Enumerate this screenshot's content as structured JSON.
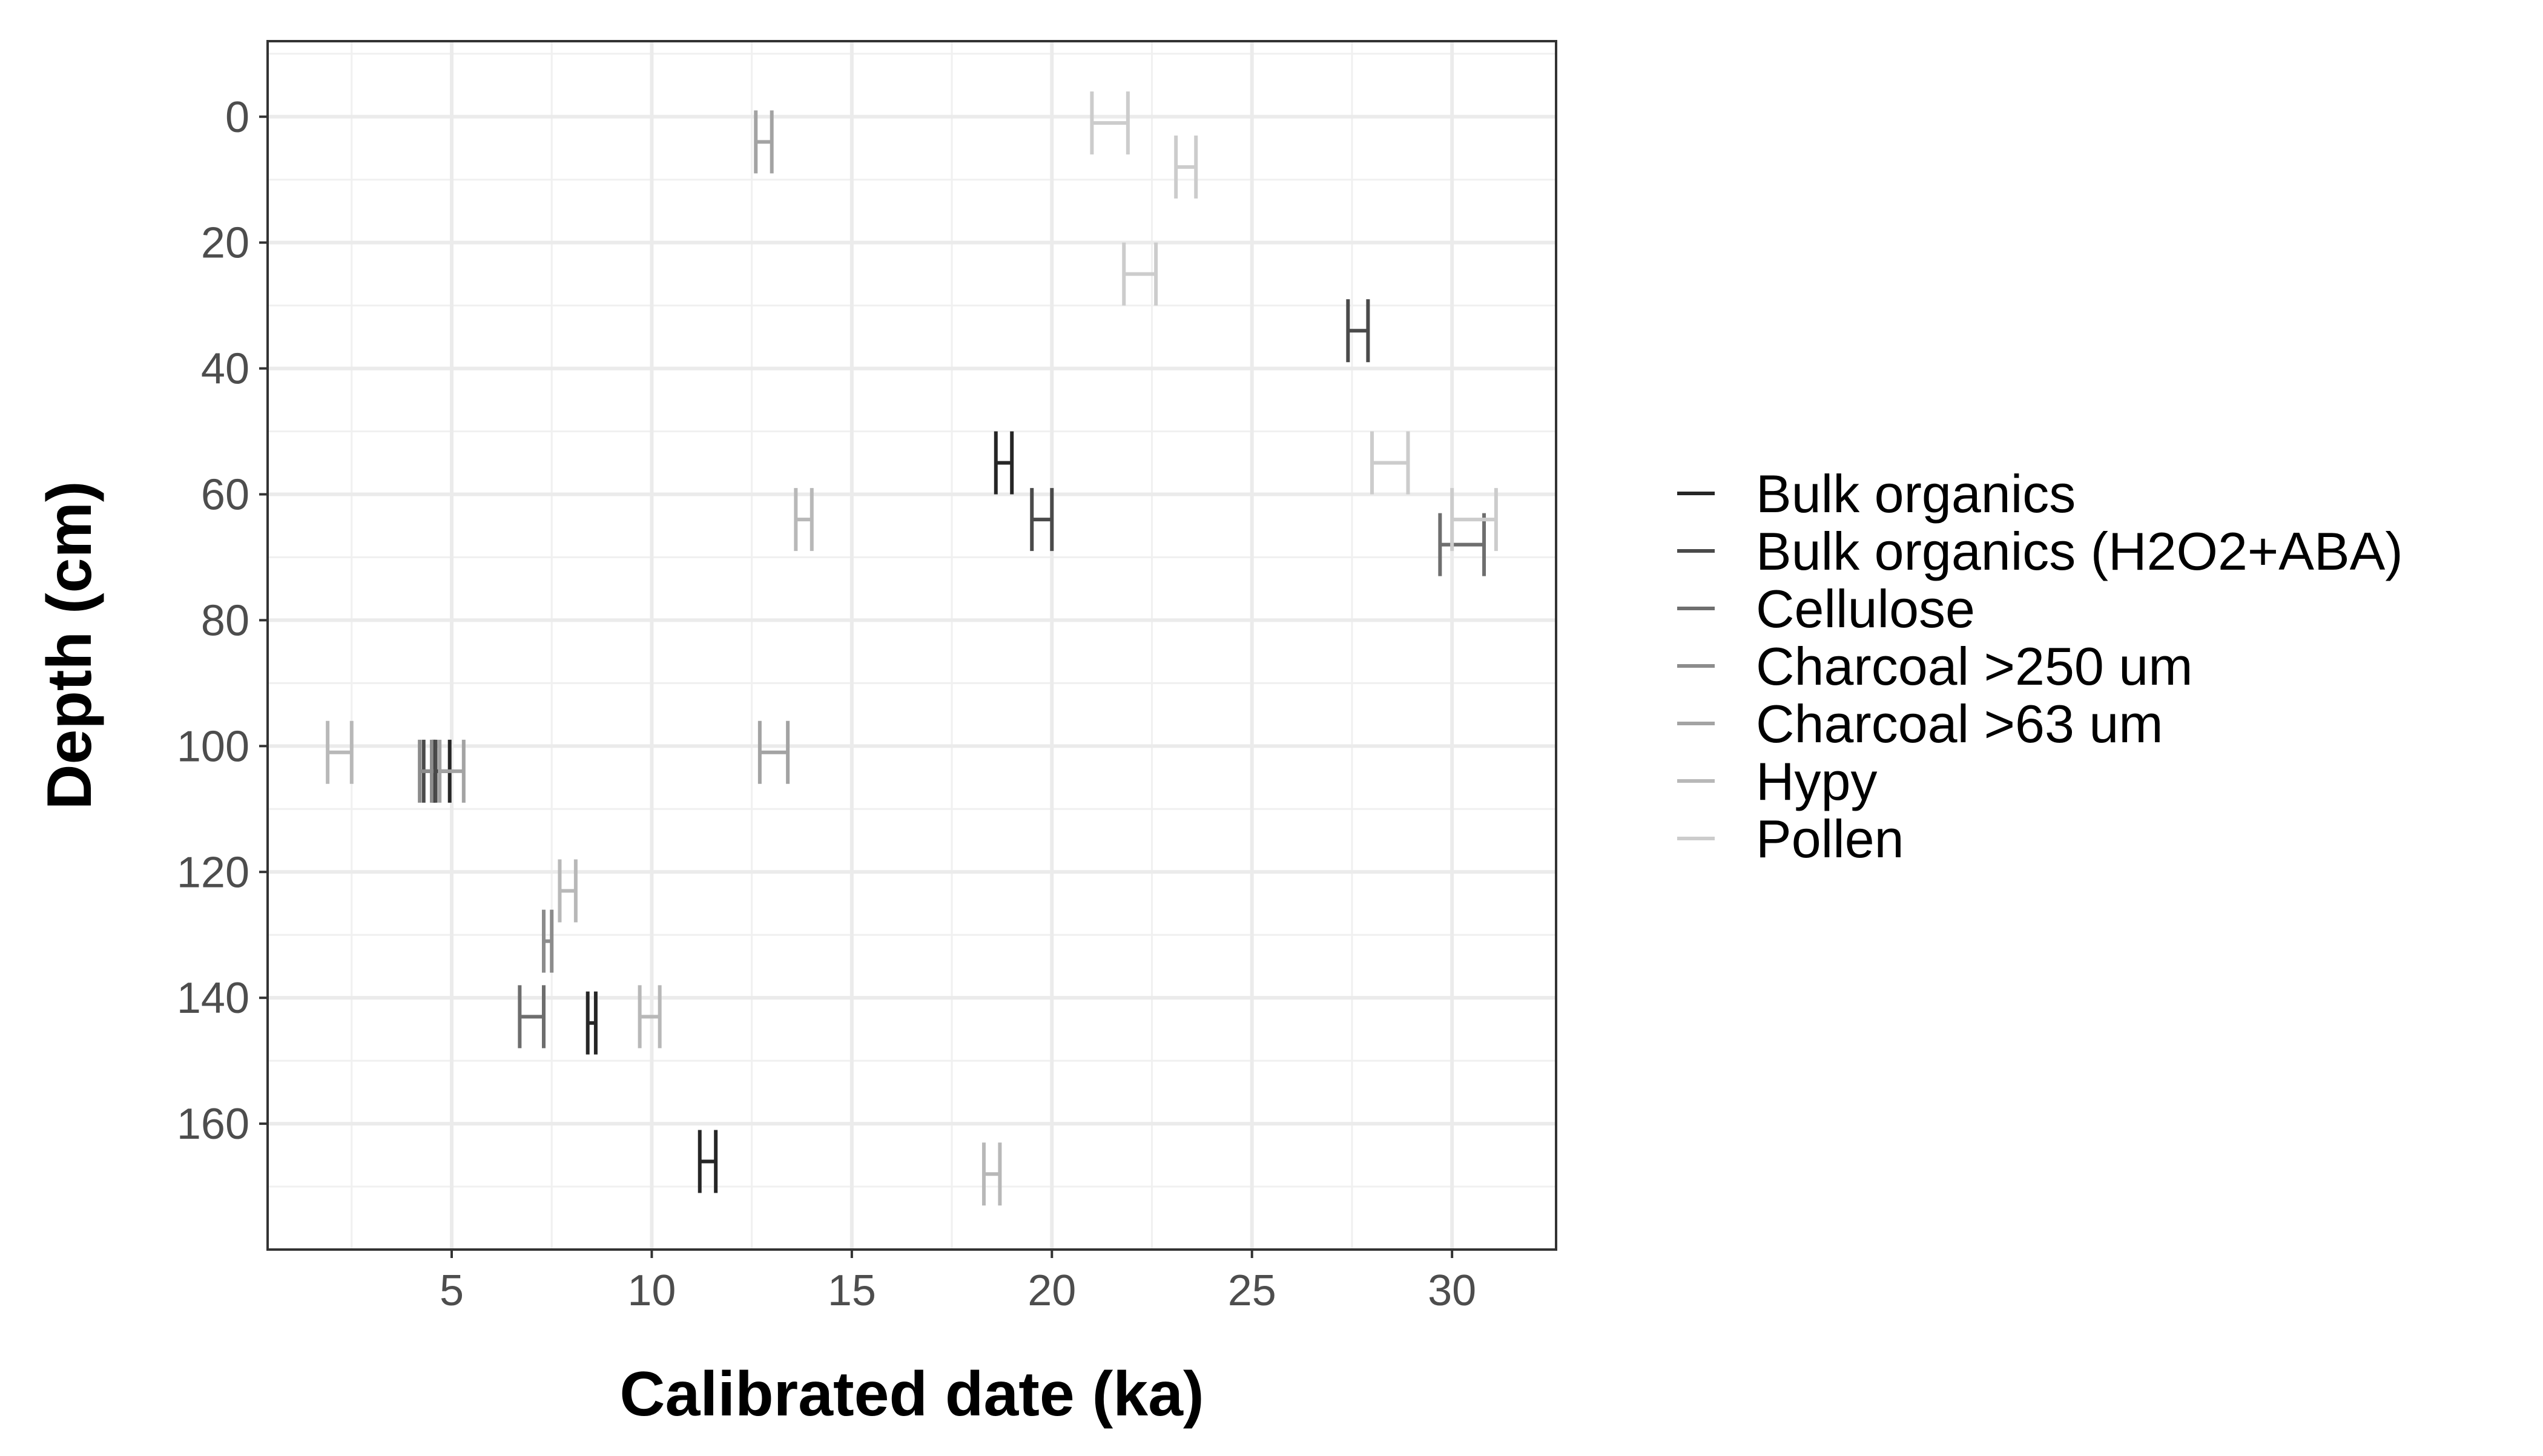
{
  "chart_data": {
    "type": "errorbar",
    "xlabel": "Calibrated date (ka)",
    "ylabel": "Depth (cm)",
    "xlim": [
      0.4,
      32.6
    ],
    "ylim": [
      180,
      -12
    ],
    "y_reversed": true,
    "x_ticks": [
      5,
      10,
      15,
      20,
      25,
      30
    ],
    "y_ticks": [
      0,
      20,
      40,
      60,
      80,
      100,
      120,
      140,
      160
    ],
    "grid": true,
    "legend_position": "right",
    "series": [
      {
        "name": "Bulk organics",
        "color": "#262626",
        "points": [
          {
            "depth": 104,
            "low": 4.55,
            "high": 4.95
          },
          {
            "depth": 55,
            "low": 18.6,
            "high": 19.0
          },
          {
            "depth": 144,
            "low": 8.4,
            "high": 8.6
          },
          {
            "depth": 166,
            "low": 11.2,
            "high": 11.6
          }
        ]
      },
      {
        "name": "Bulk organics (H2O2+ABA)",
        "color": "#4a4a4a",
        "points": [
          {
            "depth": 34,
            "low": 27.4,
            "high": 27.9
          },
          {
            "depth": 64,
            "low": 19.5,
            "high": 20.0
          },
          {
            "depth": 104,
            "low": 4.3,
            "high": 4.6
          }
        ]
      },
      {
        "name": "Cellulose",
        "color": "#6e6e6e",
        "points": [
          {
            "depth": 68,
            "low": 29.7,
            "high": 30.8
          },
          {
            "depth": 143,
            "low": 6.7,
            "high": 7.3
          }
        ]
      },
      {
        "name": "Charcoal >250 um",
        "color": "#8c8c8c",
        "points": [
          {
            "depth": 104,
            "low": 4.2,
            "high": 4.5
          },
          {
            "depth": 131,
            "low": 7.3,
            "high": 7.5
          }
        ]
      },
      {
        "name": "Charcoal >63 um",
        "color": "#a3a3a3",
        "points": [
          {
            "depth": 4,
            "low": 12.6,
            "high": 13.0
          },
          {
            "depth": 101,
            "low": 12.7,
            "high": 13.4
          },
          {
            "depth": 104,
            "low": 4.7,
            "high": 5.3
          }
        ]
      },
      {
        "name": "Hypy",
        "color": "#b8b8b8",
        "points": [
          {
            "depth": 64,
            "low": 13.6,
            "high": 14.0
          },
          {
            "depth": 101,
            "low": 1.9,
            "high": 2.5
          },
          {
            "depth": 123,
            "low": 7.7,
            "high": 8.1
          },
          {
            "depth": 143,
            "low": 9.7,
            "high": 10.2
          },
          {
            "depth": 168,
            "low": 18.3,
            "high": 18.7
          }
        ]
      },
      {
        "name": "Pollen",
        "color": "#cccccc",
        "points": [
          {
            "depth": 1,
            "low": 21.0,
            "high": 21.9
          },
          {
            "depth": 8,
            "low": 23.1,
            "high": 23.6
          },
          {
            "depth": 25,
            "low": 21.8,
            "high": 22.6
          },
          {
            "depth": 55,
            "low": 28.0,
            "high": 28.9
          },
          {
            "depth": 64,
            "low": 30.0,
            "high": 31.1
          }
        ]
      }
    ]
  }
}
